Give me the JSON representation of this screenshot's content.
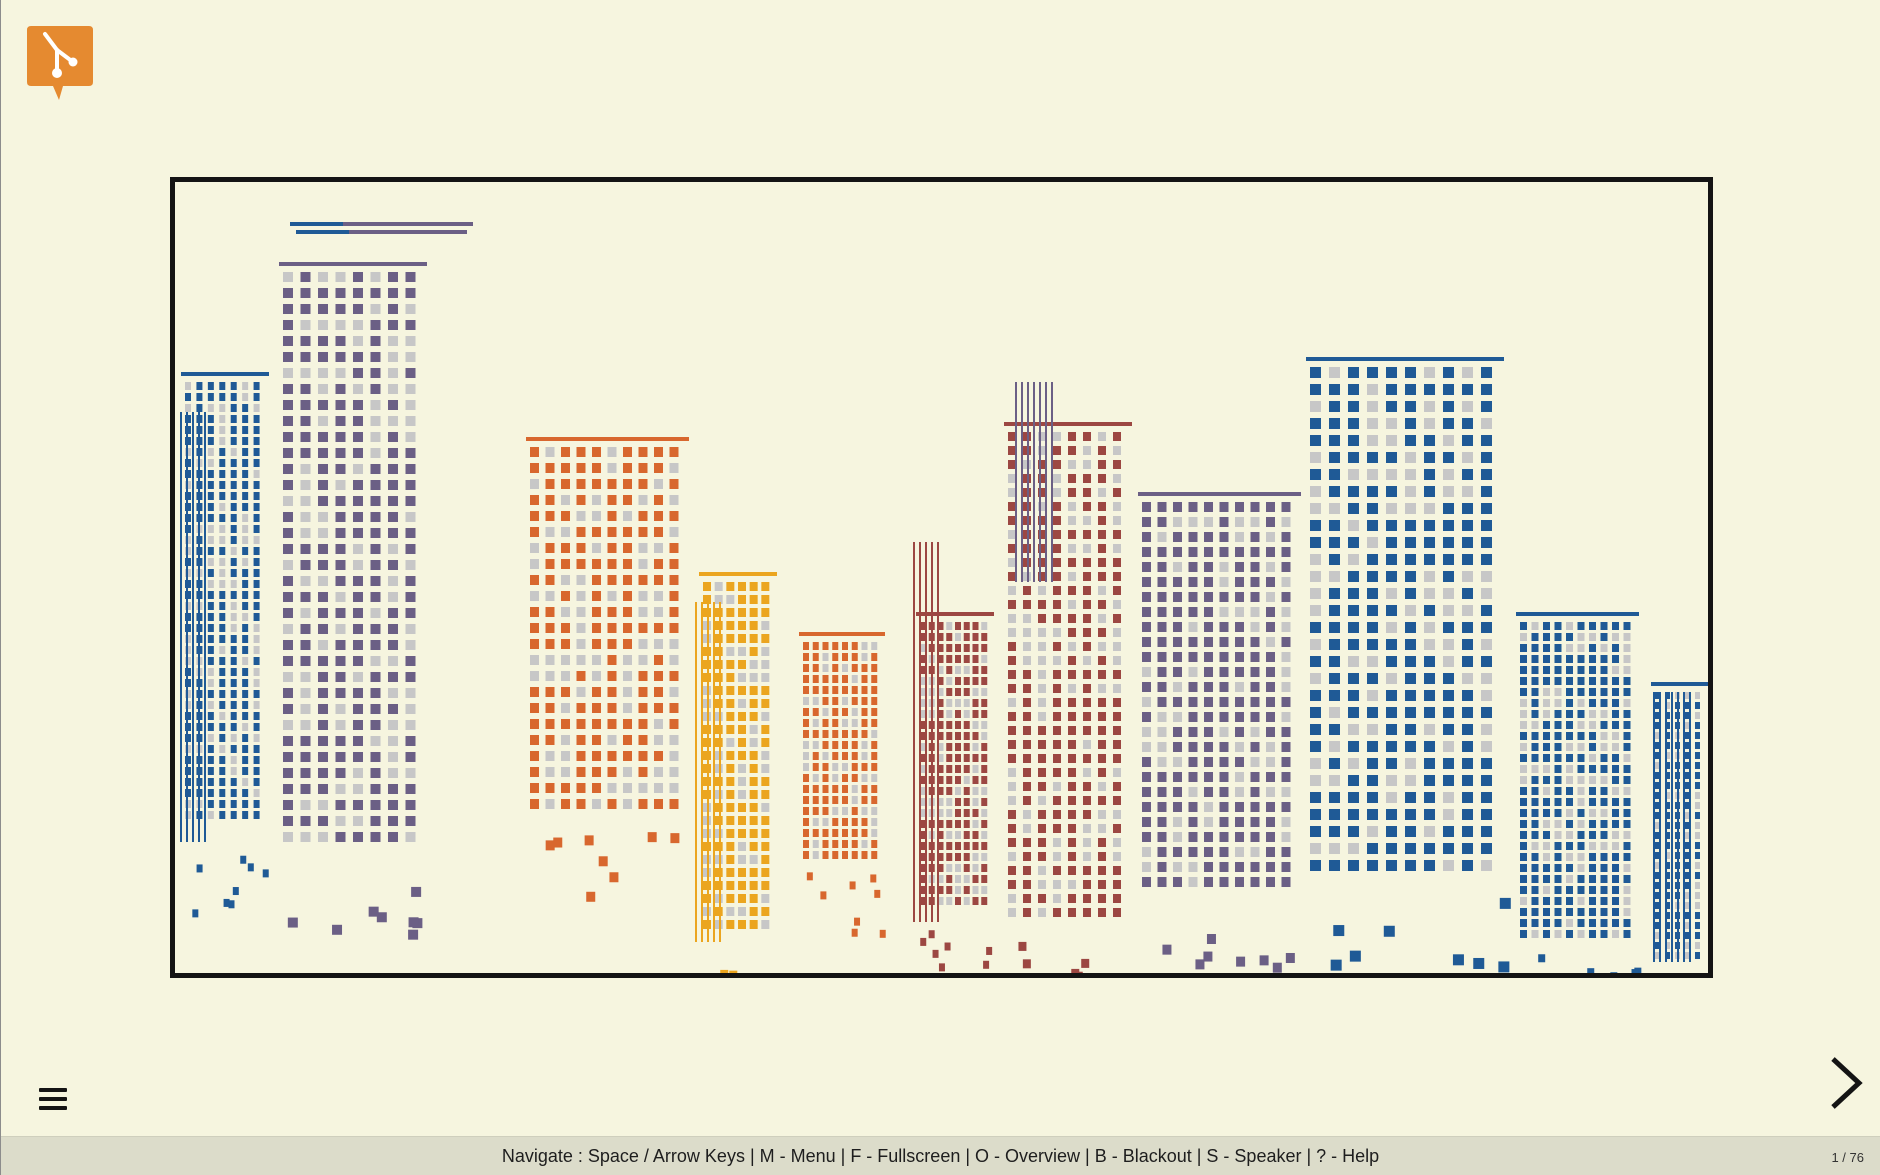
{
  "app": {
    "logo_icon": "git-speech-bubble-icon",
    "brand_color": "#e58a30"
  },
  "slide": {
    "image_description_icon": "city-skyline-illustration",
    "colors": {
      "blue": "#1f5a96",
      "purple": "#6b5f85",
      "red": "#9c4742",
      "orange": "#d8672e",
      "yellow": "#eba51f",
      "grey": "#c7c7c7"
    }
  },
  "controls": {
    "menu_icon": "hamburger-menu-icon",
    "next_icon": "chevron-right-icon"
  },
  "footer": {
    "help_text": "Navigate : Space / Arrow Keys | M - Menu | F - Fullscreen | O - Overview | B - Blackout | S - Speaker | ? - Help",
    "counter": "1 / 76"
  }
}
